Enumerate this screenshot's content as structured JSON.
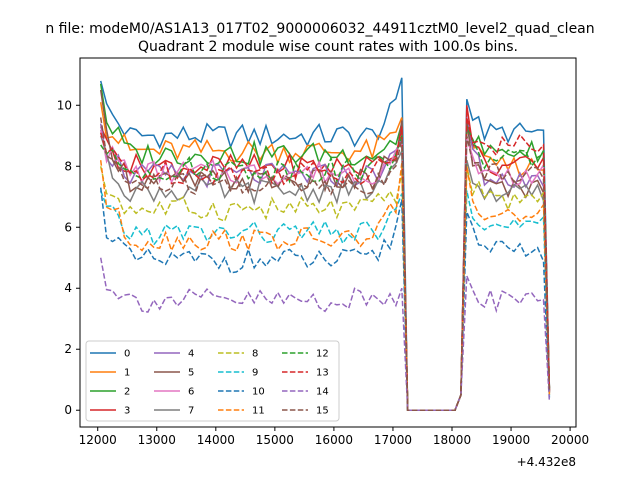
{
  "suptitle": "n file: modeM0/AS1A13_017T02_9000006032_44911cztM0_level2_quad_clean",
  "chart_data": {
    "type": "line",
    "title": "Quadrant 2 module wise count rates with 100.0s bins.",
    "xlabel": "",
    "ylabel": "",
    "x_offset_label": "+4.432e8",
    "xlim": [
      11700,
      20100
    ],
    "ylim": [
      -0.55,
      11.55
    ],
    "x_ticks": [
      12000,
      13000,
      14000,
      15000,
      16000,
      17000,
      18000,
      19000,
      20000
    ],
    "y_ticks": [
      0,
      2,
      4,
      6,
      8,
      10
    ],
    "grid": false,
    "legend_position": "lower-left",
    "legend_columns": 4,
    "series": [
      {
        "name": "0",
        "color": "#1f77b4",
        "dash": "solid",
        "level": 9.0,
        "start": 10.8,
        "peak": 10.9,
        "after": 10.2,
        "after_level": 9.1
      },
      {
        "name": "1",
        "color": "#ff7f0e",
        "dash": "solid",
        "level": 8.5,
        "start": 10.1,
        "peak": 9.6,
        "after": 9.5,
        "after_level": 8.0
      },
      {
        "name": "2",
        "color": "#2ca02c",
        "dash": "solid",
        "level": 8.4,
        "start": 10.7,
        "peak": 9.4,
        "after": 9.3,
        "after_level": 8.5
      },
      {
        "name": "3",
        "color": "#d62728",
        "dash": "solid",
        "level": 8.0,
        "start": 9.3,
        "peak": 9.3,
        "after": 10.0,
        "after_level": 8.0
      },
      {
        "name": "4",
        "color": "#9467bd",
        "dash": "solid",
        "level": 7.7,
        "start": 9.4,
        "peak": 8.9,
        "after": 9.6,
        "after_level": 7.6
      },
      {
        "name": "5",
        "color": "#8c564b",
        "dash": "solid",
        "level": 7.5,
        "start": 10.5,
        "peak": 9.5,
        "after": 9.5,
        "after_level": 7.3
      },
      {
        "name": "6",
        "color": "#e377c2",
        "dash": "solid",
        "level": 7.8,
        "start": 9.2,
        "peak": 8.8,
        "after": 8.9,
        "after_level": 7.7
      },
      {
        "name": "7",
        "color": "#7f7f7f",
        "dash": "solid",
        "level": 7.2,
        "start": 9.0,
        "peak": 8.5,
        "after": 8.2,
        "after_level": 7.1
      },
      {
        "name": "8",
        "color": "#bcbd22",
        "dash": "dashed",
        "level": 6.6,
        "start": 8.0,
        "peak": 7.8,
        "after": 8.0,
        "after_level": 6.9
      },
      {
        "name": "9",
        "color": "#17becf",
        "dash": "dashed",
        "level": 5.8,
        "start": 7.2,
        "peak": 7.1,
        "after": 7.2,
        "after_level": 6.0
      },
      {
        "name": "10",
        "color": "#1f77b4",
        "dash": "dashed",
        "level": 4.9,
        "start": 7.3,
        "peak": 6.9,
        "after": 6.5,
        "after_level": 5.2
      },
      {
        "name": "11",
        "color": "#ff7f0e",
        "dash": "dashed",
        "level": 5.6,
        "start": 8.2,
        "peak": 8.1,
        "after": 8.0,
        "after_level": 6.4
      },
      {
        "name": "12",
        "color": "#2ca02c",
        "dash": "dashed",
        "level": 7.9,
        "start": 8.7,
        "peak": 9.0,
        "after": 9.3,
        "after_level": 8.2
      },
      {
        "name": "13",
        "color": "#d62728",
        "dash": "dashed",
        "level": 7.8,
        "start": 9.1,
        "peak": 9.3,
        "after": 9.6,
        "after_level": 8.7
      },
      {
        "name": "14",
        "color": "#9467bd",
        "dash": "dashed",
        "level": 3.6,
        "start": 5.0,
        "peak": 4.0,
        "after": 4.4,
        "after_level": 3.6
      },
      {
        "name": "15",
        "color": "#8c564b",
        "dash": "dashed",
        "level": 7.4,
        "start": 9.6,
        "peak": 8.9,
        "after": 9.0,
        "after_level": 7.8
      }
    ],
    "time_structure": {
      "bin_width": 100,
      "first_bin": 12050,
      "seg1_last_bin": 17150,
      "gap_bins": [
        17250,
        17350,
        18050
      ],
      "gap_value": 0,
      "seg2_first_bin": 18150,
      "last_bin": 19650,
      "end_values_fraction": 0.08
    }
  }
}
